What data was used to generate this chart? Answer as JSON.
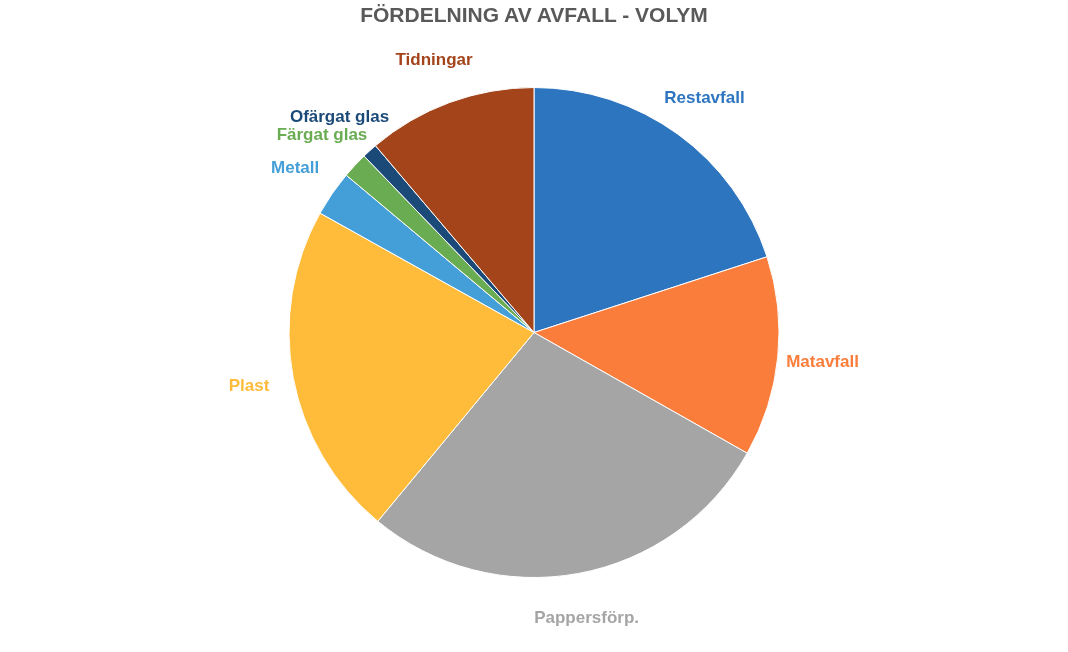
{
  "chart_data": {
    "type": "pie",
    "title": "FÖRDELNING AV AVFALL - VOLYM",
    "categories": [
      "Restavfall",
      "Matavfall",
      "Pappersförp.",
      "Plast",
      "Metall",
      "Färgat glas",
      "Ofärgat glas",
      "Tidningar"
    ],
    "values": [
      20.0,
      13.2,
      27.8,
      22.1,
      3.0,
      1.7,
      1.0,
      11.2
    ],
    "colors": [
      "#2e75c0",
      "#fb7d3c",
      "#a5a5a5",
      "#ffbc3b",
      "#449ed8",
      "#6aac52",
      "#1b4a78",
      "#a4441b"
    ],
    "legend": false
  }
}
